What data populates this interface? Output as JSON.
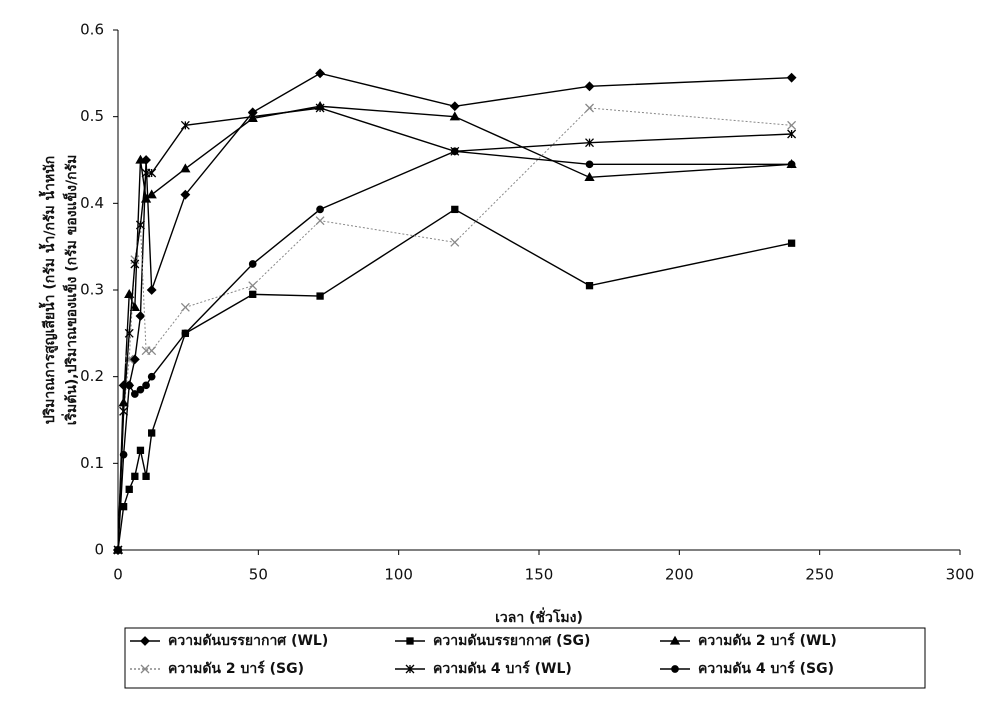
{
  "chart_data": {
    "type": "line",
    "xlabel": "เวลา (ชั่วโมง)",
    "ylabel": [
      "ปริมาณการสูญเสียน้ำ (กรัม น้ำ/กรัม น้ำหนัก",
      "เริ่มต้น),ปริมาณของแข็ง (กรัม ของแข็ง/กรัม"
    ],
    "x": [
      0,
      2,
      4,
      6,
      8,
      10,
      12,
      24,
      48,
      72,
      120,
      168,
      240
    ],
    "series": [
      {
        "name": "ความดันบรรยากาศ (WL)",
        "color": "#000000",
        "marker": "diamond",
        "dash": false,
        "values": [
          0,
          0.19,
          0.19,
          0.22,
          0.27,
          0.45,
          0.3,
          0.41,
          0.505,
          0.55,
          0.512,
          0.535,
          0.545
        ]
      },
      {
        "name": "ความดันบรรยากาศ (SG)",
        "color": "#000000",
        "marker": "square",
        "dash": false,
        "values": [
          0,
          0.05,
          0.07,
          0.085,
          0.115,
          0.085,
          0.135,
          0.25,
          0.295,
          0.293,
          0.393,
          0.305,
          0.354
        ]
      },
      {
        "name": "ความดัน 2 บาร์ (WL)",
        "color": "#000000",
        "marker": "triangle",
        "dash": false,
        "values": [
          0,
          0.17,
          0.295,
          0.28,
          0.45,
          0.405,
          0.41,
          0.44,
          0.498,
          0.512,
          0.5,
          0.43,
          0.445
        ]
      },
      {
        "name": "ความดัน 2 บาร์ (SG)",
        "color": "#888888",
        "marker": "x",
        "dash": true,
        "values": [
          0,
          0.16,
          0.22,
          0.335,
          0.375,
          0.23,
          0.23,
          0.28,
          0.305,
          0.38,
          0.355,
          0.51,
          0.49
        ]
      },
      {
        "name": "ความดัน 4 บาร์ (WL)",
        "color": "#000000",
        "marker": "star",
        "dash": false,
        "values": [
          0,
          0.16,
          0.25,
          0.33,
          0.375,
          0.435,
          0.435,
          0.49,
          0.5,
          0.51,
          0.46,
          0.47,
          0.48
        ]
      },
      {
        "name": "ความดัน 4 บาร์ (SG)",
        "color": "#000000",
        "marker": "circle",
        "dash": false,
        "values": [
          0,
          0.11,
          0.19,
          0.18,
          0.185,
          0.19,
          0.2,
          0.25,
          0.33,
          0.393,
          0.46,
          0.445,
          0.445
        ]
      }
    ],
    "xlim": [
      0,
      300
    ],
    "xticks": [
      0,
      50,
      100,
      150,
      200,
      250,
      300
    ],
    "ylim": [
      0,
      0.6
    ],
    "yticks": [
      0,
      0.1,
      0.2,
      0.3,
      0.4,
      0.5,
      0.6
    ],
    "grid": false,
    "legend": "bottom"
  }
}
